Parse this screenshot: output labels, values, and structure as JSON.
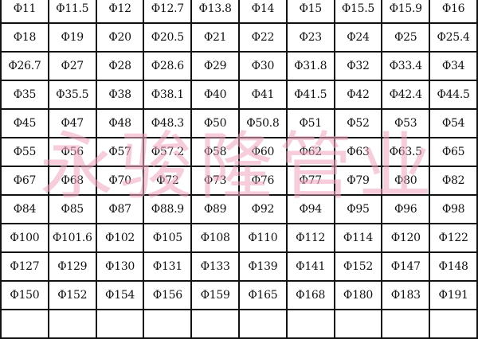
{
  "table": {
    "rows": [
      [
        "Φ11",
        "Φ11.5",
        "Φ12",
        "Φ12.7",
        "Φ13.8",
        "Φ14",
        "Φ15",
        "Φ15.5",
        "Φ15.9",
        "Φ16"
      ],
      [
        "Φ18",
        "Φ19",
        "Φ20",
        "Φ20.5",
        "Φ21",
        "Φ22",
        "Φ23",
        "Φ24",
        "Φ25",
        "Φ25.4"
      ],
      [
        "Φ26.7",
        "Φ27",
        "Φ28",
        "Φ28.6",
        "Φ29",
        "Φ30",
        "Φ31.8",
        "Φ32",
        "Φ33.4",
        "Φ34"
      ],
      [
        "Φ35",
        "Φ35.5",
        "Φ38",
        "Φ38.1",
        "Φ40",
        "Φ41",
        "Φ41.5",
        "Φ42",
        "Φ42.4",
        "Φ44.5"
      ],
      [
        "Φ45",
        "Φ47",
        "Φ48",
        "Φ48.3",
        "Φ50",
        "Φ50.8",
        "Φ51",
        "Φ52",
        "Φ53",
        "Φ54"
      ],
      [
        "Φ55",
        "Φ56",
        "Φ57",
        "Φ57.2",
        "Φ58",
        "Φ60",
        "Φ62",
        "Φ63",
        "Φ63.5",
        "Φ65"
      ],
      [
        "Φ67",
        "Φ68",
        "Φ70",
        "Φ72",
        "Φ73",
        "Φ76",
        "Φ77",
        "Φ79",
        "Φ80",
        "Φ82"
      ],
      [
        "Φ84",
        "Φ85",
        "Φ87",
        "Φ88.9",
        "Φ89",
        "Φ92",
        "Φ94",
        "Φ95",
        "Φ96",
        "Φ98"
      ],
      [
        "Φ100",
        "Φ101.6",
        "Φ102",
        "Φ105",
        "Φ108",
        "Φ110",
        "Φ112",
        "Φ114",
        "Φ120",
        "Φ122"
      ],
      [
        "Φ127",
        "Φ129",
        "Φ130",
        "Φ131",
        "Φ133",
        "Φ139",
        "Φ141",
        "Φ152",
        "Φ147",
        "Φ148"
      ],
      [
        "Φ150",
        "Φ152",
        "Φ154",
        "Φ156",
        "Φ159",
        "Φ165",
        "Φ168",
        "Φ180",
        "Φ183",
        "Φ191"
      ]
    ]
  },
  "watermark": {
    "text": "永骏隆管业",
    "color": "#f2a6c0"
  }
}
